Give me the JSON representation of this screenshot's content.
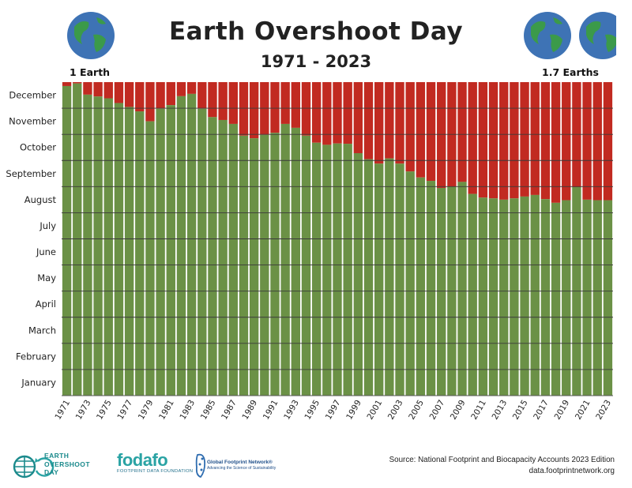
{
  "header": {
    "title": "Earth Overshoot Day",
    "subtitle": "1971 - 2023",
    "left_label": "1 Earth",
    "right_label": "1.7 Earths"
  },
  "colors": {
    "green": "#6b9146",
    "red": "#c12a21",
    "globe_ocean": "#3e73b5",
    "globe_land": "#3b9a4a",
    "teal": "#2aa3a4"
  },
  "footer": {
    "source_line": "Source: National Footprint and Biocapacity Accounts 2023 Edition",
    "url": "data.footprintnetwork.org",
    "logos": {
      "eod_line1": "EARTH",
      "eod_line2": "OVERSHOOT",
      "eod_line3": "DAY",
      "fodafo": "fodafo",
      "fodafo_sub": "FOOTPRINT DATA FOUNDATION",
      "gfn_line1": "Global Footprint Network®",
      "gfn_line2": "Advancing the Science of Sustainability"
    }
  },
  "chart_data": {
    "type": "bar",
    "title": "Earth Overshoot Day",
    "subtitle": "1971 - 2023",
    "y_axis_labels": [
      "January",
      "February",
      "March",
      "April",
      "May",
      "June",
      "July",
      "August",
      "September",
      "October",
      "November",
      "December"
    ],
    "y_unit": "month of year (0 = Jan 1, 12 = Dec 31)",
    "ylim": [
      0,
      12
    ],
    "x_tick_labels": [
      "1971",
      "1973",
      "1975",
      "1977",
      "1979",
      "1981",
      "1983",
      "1985",
      "1987",
      "1989",
      "1991",
      "1993",
      "1995",
      "1997",
      "1999",
      "2001",
      "2003",
      "2005",
      "2007",
      "2009",
      "2011",
      "2013",
      "2015",
      "2017",
      "2019",
      "2021",
      "2023"
    ],
    "grid": "horizontal month lines",
    "series": [
      {
        "name": "1 Earth",
        "color": "#6b9146",
        "x": [
          1971,
          1972,
          1973,
          1974,
          1975,
          1976,
          1977,
          1978,
          1979,
          1980,
          1981,
          1982,
          1983,
          1984,
          1985,
          1986,
          1987,
          1988,
          1989,
          1990,
          1991,
          1992,
          1993,
          1994,
          1995,
          1996,
          1997,
          1998,
          1999,
          2000,
          2001,
          2002,
          2003,
          2004,
          2005,
          2006,
          2007,
          2008,
          2009,
          2010,
          2011,
          2012,
          2013,
          2014,
          2015,
          2016,
          2017,
          2018,
          2019,
          2020,
          2021,
          2022,
          2023
        ],
        "values": [
          11.85,
          11.95,
          11.52,
          11.45,
          11.38,
          11.2,
          11.05,
          10.88,
          10.5,
          10.98,
          11.12,
          11.46,
          11.55,
          10.98,
          10.66,
          10.55,
          10.4,
          9.95,
          9.85,
          9.98,
          10.06,
          10.4,
          10.25,
          9.95,
          9.68,
          9.6,
          9.65,
          9.64,
          9.28,
          9.05,
          8.88,
          9.08,
          8.88,
          8.58,
          8.35,
          8.22,
          7.95,
          8.0,
          8.18,
          7.72,
          7.58,
          7.55,
          7.5,
          7.55,
          7.62,
          7.68,
          7.52,
          7.38,
          7.48,
          7.98,
          7.5,
          7.48,
          7.48
        ]
      }
    ]
  }
}
